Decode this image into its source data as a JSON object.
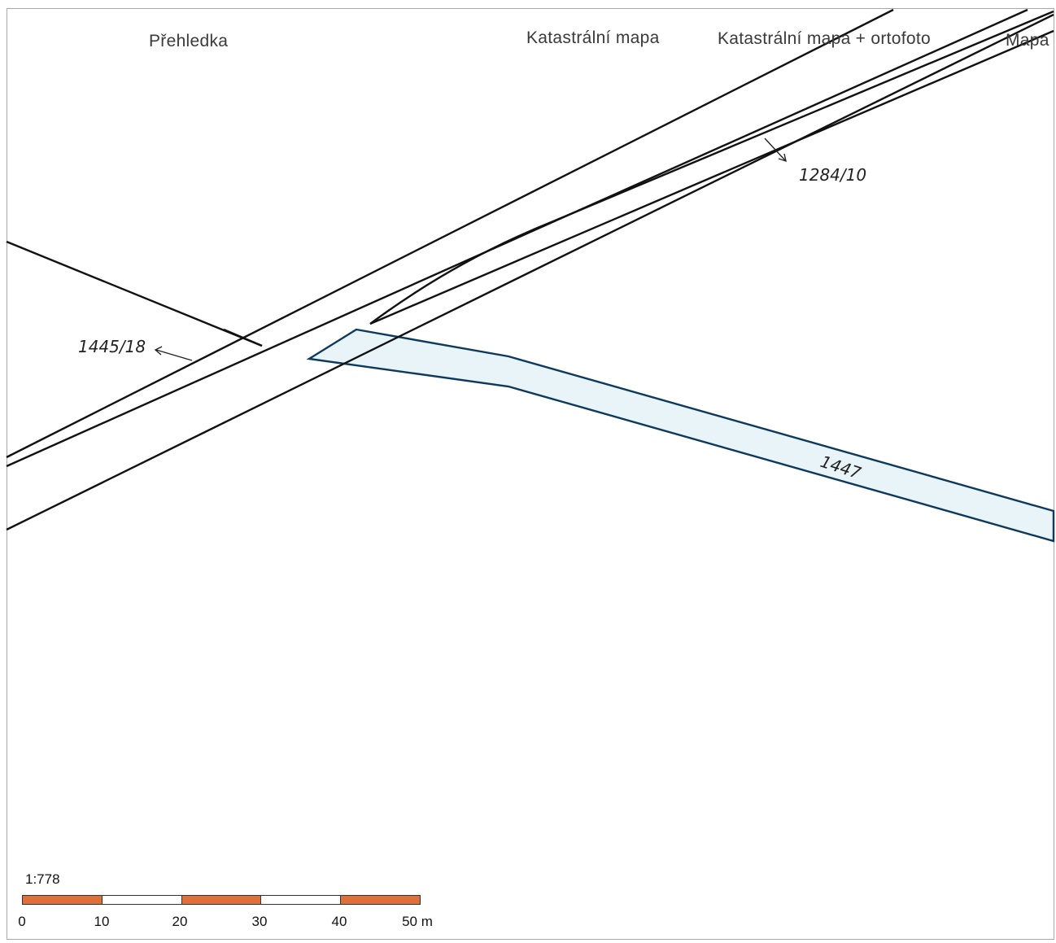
{
  "tabs": {
    "overview": "Přehledka",
    "cadastral": "Katastrální mapa",
    "cadastral_ortho": "Katastrální mapa + ortofoto",
    "map": "Mapa"
  },
  "parcels": {
    "p1": "1284/10",
    "p2": "1445/18",
    "p3": "1447"
  },
  "scale": {
    "ratio": "1:778",
    "ticks": [
      "0",
      "10",
      "20",
      "30",
      "40",
      "50 m"
    ],
    "colors": [
      "#e0703a",
      "#ffffff",
      "#e0703a",
      "#ffffff",
      "#e0703a"
    ]
  },
  "colors": {
    "parcel_line": "#111111",
    "watercourse_fill": "#e8f4f8",
    "watercourse_edge": "#0d3a5c"
  }
}
